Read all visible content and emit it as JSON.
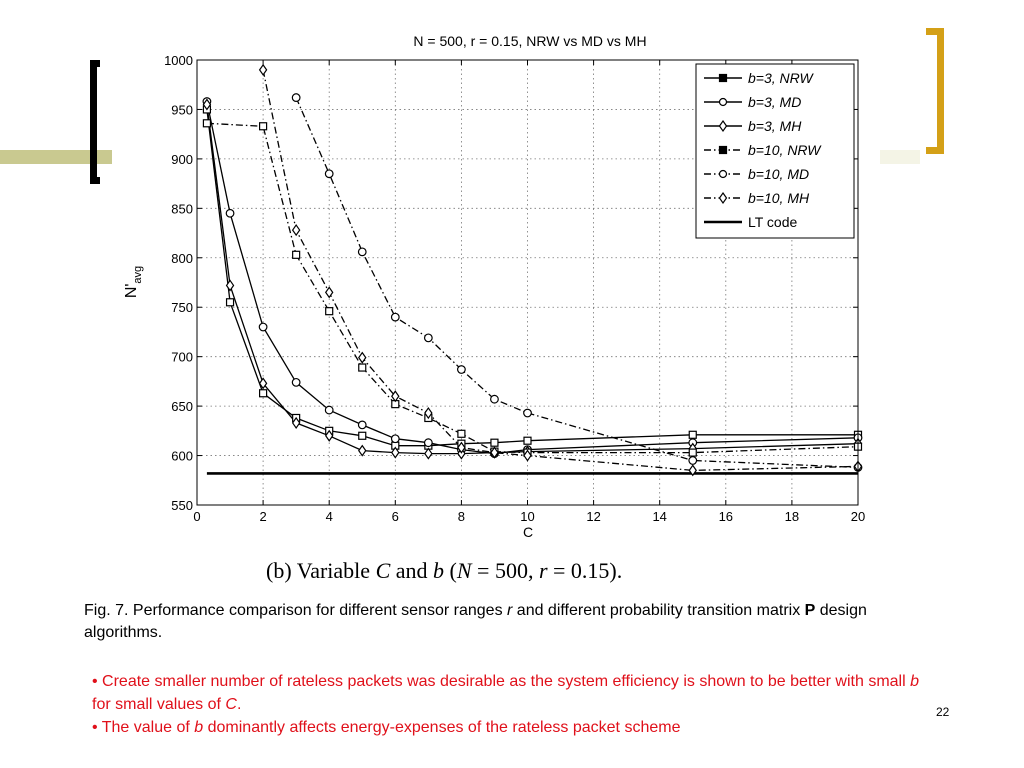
{
  "chart_data": {
    "type": "line",
    "title": "N = 500, r = 0.15, NRW vs MD vs MH",
    "xlabel": "C",
    "ylabel": "N'avg",
    "xlim": [
      0,
      20
    ],
    "ylim": [
      550,
      1000
    ],
    "xticks": [
      0,
      2,
      4,
      6,
      8,
      10,
      12,
      14,
      16,
      18,
      20
    ],
    "yticks": [
      550,
      600,
      650,
      700,
      750,
      800,
      850,
      900,
      950,
      1000
    ],
    "grid": true,
    "legend_position": "top-right",
    "series": [
      {
        "name": "b=3, NRW",
        "marker": "square",
        "dash": "solid",
        "x": [
          0.3,
          1,
          2,
          3,
          4,
          5,
          6,
          7,
          8,
          9,
          10,
          15,
          20
        ],
        "y": [
          950,
          755,
          663,
          638,
          625,
          620,
          610,
          610,
          612,
          613,
          615,
          621,
          621
        ]
      },
      {
        "name": "b=3, MD",
        "marker": "circle",
        "dash": "solid",
        "x": [
          0.3,
          1,
          2,
          3,
          4,
          5,
          6,
          7,
          8,
          9,
          10,
          15,
          20
        ],
        "y": [
          958,
          845,
          730,
          674,
          646,
          631,
          617,
          613,
          606,
          602,
          606,
          613,
          618
        ]
      },
      {
        "name": "b=3, MH",
        "marker": "diamond",
        "dash": "solid",
        "x": [
          0.3,
          1,
          2,
          3,
          4,
          5,
          6,
          7,
          8,
          9,
          10,
          15,
          20
        ],
        "y": [
          955,
          772,
          673,
          633,
          620,
          605,
          603,
          602,
          602,
          603,
          604,
          607,
          612
        ]
      },
      {
        "name": "b=10, NRW",
        "marker": "square",
        "dash": "dashdot",
        "x": [
          0.3,
          2,
          3,
          4,
          5,
          6,
          7,
          8,
          9,
          10,
          15,
          20
        ],
        "y": [
          936,
          933,
          803,
          746,
          689,
          652,
          638,
          622,
          604,
          603,
          603,
          609
        ]
      },
      {
        "name": "b=10, MD",
        "marker": "circle",
        "dash": "dashdot",
        "x": [
          3,
          4,
          5,
          6,
          7,
          8,
          9,
          10,
          15,
          20
        ],
        "y": [
          962,
          885,
          806,
          740,
          719,
          687,
          657,
          643,
          595,
          588
        ]
      },
      {
        "name": "b=10, MH",
        "marker": "diamond",
        "dash": "dashdot",
        "x": [
          2,
          3,
          4,
          5,
          6,
          7,
          8,
          9,
          10,
          15,
          20
        ],
        "y": [
          990,
          828,
          765,
          699,
          660,
          643,
          608,
          603,
          600,
          585,
          589
        ]
      },
      {
        "name": "LT code",
        "marker": "none",
        "dash": "thick",
        "x": [
          0.3,
          20
        ],
        "y": [
          582,
          582
        ]
      }
    ]
  },
  "subcaption": {
    "prefix": "(b)  Variable ",
    "c_var": "C",
    "and": " and ",
    "b_var": "b",
    "paren_open": " (",
    "n_var": "N",
    "n_eq": " = 500, ",
    "r_var": "r",
    "r_eq": " = 0.15)."
  },
  "caption": {
    "part1": "Fig. 7. Performance comparison for different sensor ranges ",
    "r": "r",
    "part2": " and different probability transition matrix ",
    "p": "P",
    "part3": " design algorithms."
  },
  "bullets": [
    {
      "a": "• Create smaller number of rateless packets was desirable as the system efficiency is shown to be better with small ",
      "v1": "b",
      "b": " for small values of ",
      "v2": "C",
      "c": "."
    },
    {
      "a": "• The value of ",
      "v1": "b",
      "b": " dominantly affects energy-expenses of the rateless packet scheme"
    }
  ],
  "page_number": "22",
  "colors": {
    "accent_bracket": "#d4a017",
    "bar": "#c9c990",
    "text_red": "#e0101a"
  }
}
